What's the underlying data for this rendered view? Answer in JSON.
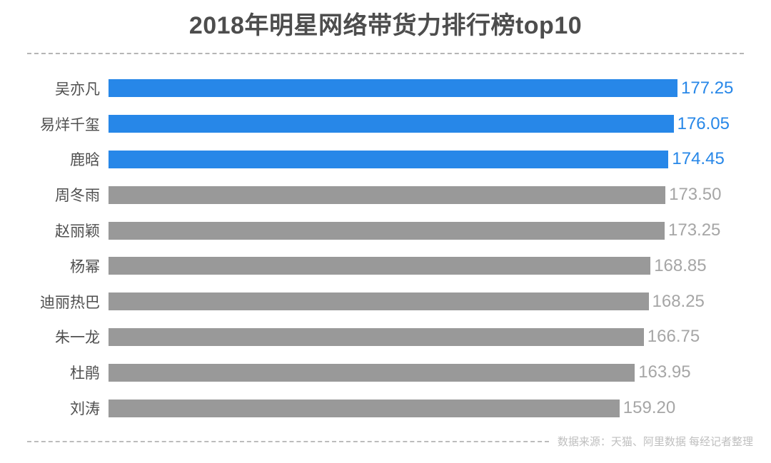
{
  "header": {
    "title": "2018年明星网络带货力排行榜top10"
  },
  "chart_data": {
    "type": "bar",
    "orientation": "horizontal",
    "title": "2018年明星网络带货力排行榜top10",
    "categories": [
      "吴亦凡",
      "易烊千玺",
      "鹿晗",
      "周冬雨",
      "赵丽颖",
      "杨幂",
      "迪丽热巴",
      "朱一龙",
      "杜鹃",
      "刘涛"
    ],
    "values": [
      177.25,
      176.05,
      174.45,
      173.5,
      173.25,
      168.85,
      168.25,
      166.75,
      163.95,
      159.2
    ],
    "value_labels": [
      "177.25",
      "176.05",
      "174.45",
      "173.50",
      "173.25",
      "168.85",
      "168.25",
      "166.75",
      "163.95",
      "159.20"
    ],
    "xlim": [
      0,
      180
    ],
    "grid": false,
    "legend": false,
    "highlight_top": 3,
    "colors": {
      "highlight_bar": "#2787e8",
      "default_bar": "#999999",
      "highlight_value": "#2787e8",
      "default_value": "#a6a6a6",
      "category_label": "#4f4f4f"
    }
  },
  "footer": {
    "source_note": "数据来源：天猫、阿里数据 每经记者整理"
  }
}
